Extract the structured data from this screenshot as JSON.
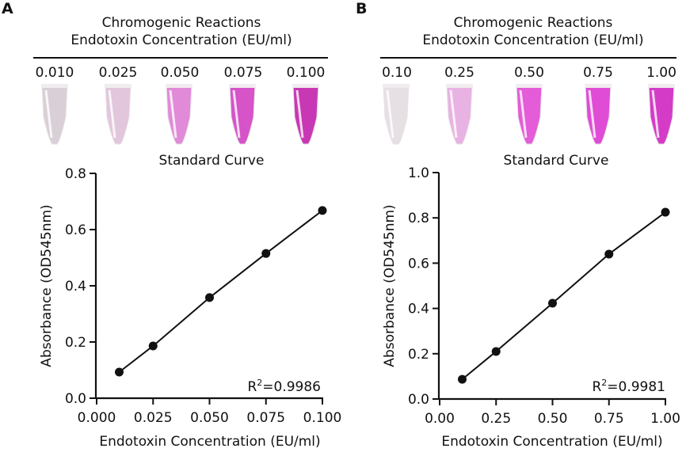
{
  "panels": [
    {
      "letter": "A",
      "header_line1": "Chromogenic Reactions",
      "header_line2": "Endotoxin Concentration (EU/ml)",
      "tubes": [
        {
          "label": "0.010",
          "color": "#d9cfd6"
        },
        {
          "label": "0.025",
          "color": "#e2c6dc"
        },
        {
          "label": "0.050",
          "color": "#e08ad8"
        },
        {
          "label": "0.075",
          "color": "#d653c8"
        },
        {
          "label": "0.100",
          "color": "#c838b4"
        }
      ]
    },
    {
      "letter": "B",
      "header_line1": "Chromogenic Reactions",
      "header_line2": "Endotoxin Concentration (EU/ml)",
      "tubes": [
        {
          "label": "0.10",
          "color": "#e6dfe3"
        },
        {
          "label": "0.25",
          "color": "#e8b2e2"
        },
        {
          "label": "0.50",
          "color": "#e45cd8"
        },
        {
          "label": "0.75",
          "color": "#e04cd6"
        },
        {
          "label": "1.00",
          "color": "#d43cc8"
        }
      ]
    }
  ],
  "chart_data": [
    {
      "type": "line",
      "title": "Standard Curve",
      "xlabel": "Endotoxin Concentration (EU/ml)",
      "ylabel": "Absorbance (OD545nm)",
      "x": [
        0.01,
        0.025,
        0.05,
        0.075,
        0.1
      ],
      "series": [
        {
          "name": "Standard Curve",
          "values": [
            0.093,
            0.186,
            0.358,
            0.515,
            0.668
          ]
        }
      ],
      "xlim": [
        0,
        0.1
      ],
      "ylim": [
        0,
        0.8
      ],
      "xticks": [
        0,
        0.025,
        0.05,
        0.075,
        0.1
      ],
      "xtick_labels": [
        "0.000",
        "0.025",
        "0.050",
        "0.075",
        "0.100"
      ],
      "yticks": [
        0,
        0.2,
        0.4,
        0.6,
        0.8
      ],
      "ytick_labels": [
        "0.0",
        "0.2",
        "0.4",
        "0.6",
        "0.8"
      ],
      "annotation_prefix": "R",
      "annotation_sup": "2",
      "annotation_value": "=0.9986",
      "grid": false
    },
    {
      "type": "line",
      "title": "Standard Curve",
      "xlabel": "Endotoxin Concentration (EU/ml)",
      "ylabel": "Absorbance (OD545nm)",
      "x": [
        0.1,
        0.25,
        0.5,
        0.75,
        1.0
      ],
      "series": [
        {
          "name": "Standard Curve",
          "values": [
            0.087,
            0.21,
            0.423,
            0.64,
            0.825
          ]
        }
      ],
      "xlim": [
        0,
        1.0
      ],
      "ylim": [
        0,
        1.0
      ],
      "xticks": [
        0,
        0.25,
        0.5,
        0.75,
        1.0
      ],
      "xtick_labels": [
        "0.00",
        "0.25",
        "0.50",
        "0.75",
        "1.00"
      ],
      "yticks": [
        0,
        0.2,
        0.4,
        0.6,
        0.8,
        1.0
      ],
      "ytick_labels": [
        "0.0",
        "0.2",
        "0.4",
        "0.6",
        "0.8",
        "1.0"
      ],
      "annotation_prefix": "R",
      "annotation_sup": "2",
      "annotation_value": "=0.9981",
      "grid": false
    }
  ]
}
